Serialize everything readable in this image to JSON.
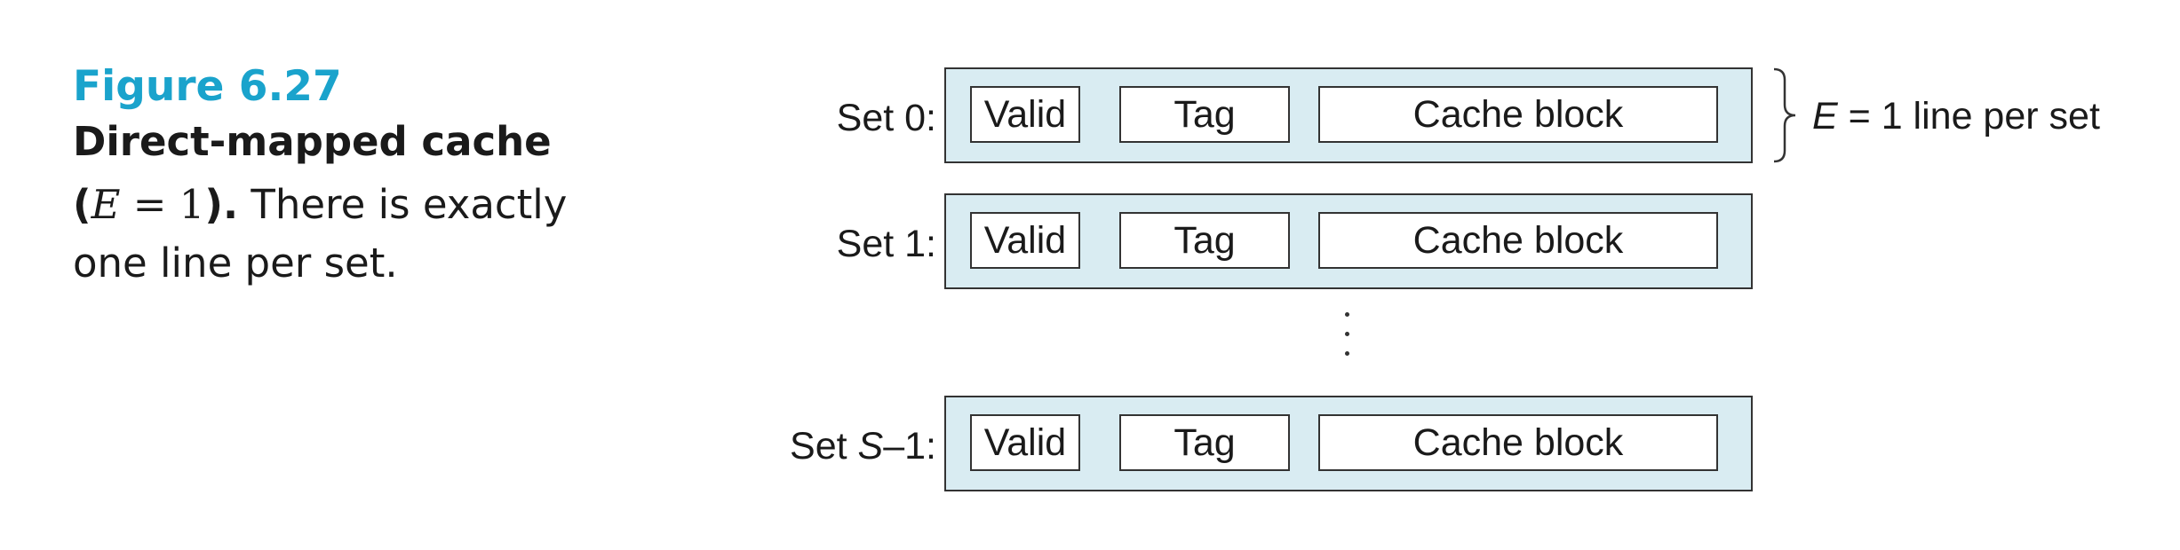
{
  "caption": {
    "figure_number": "Figure 6.27",
    "title": "Direct-mapped cache",
    "math_open": "(",
    "math_var": "E",
    "math_rest": " = 1",
    "math_close": ").",
    "body": " There is exactly one line per set."
  },
  "sets": [
    {
      "prefix": "Set 0:",
      "var": "",
      "suffix": "",
      "fields": {
        "valid": "Valid",
        "tag": "Tag",
        "block": "Cache block"
      }
    },
    {
      "prefix": "Set 1:",
      "var": "",
      "suffix": "",
      "fields": {
        "valid": "Valid",
        "tag": "Tag",
        "block": "Cache block"
      }
    },
    {
      "prefix": "Set ",
      "var": "S",
      "suffix": "–1:",
      "fields": {
        "valid": "Valid",
        "tag": "Tag",
        "block": "Cache block"
      }
    }
  ],
  "annotation": {
    "var": "E",
    "text": " = 1 line per set"
  },
  "colors": {
    "accent": "#1aa3cc",
    "set_fill": "#d9ecf2",
    "border": "#333333"
  }
}
